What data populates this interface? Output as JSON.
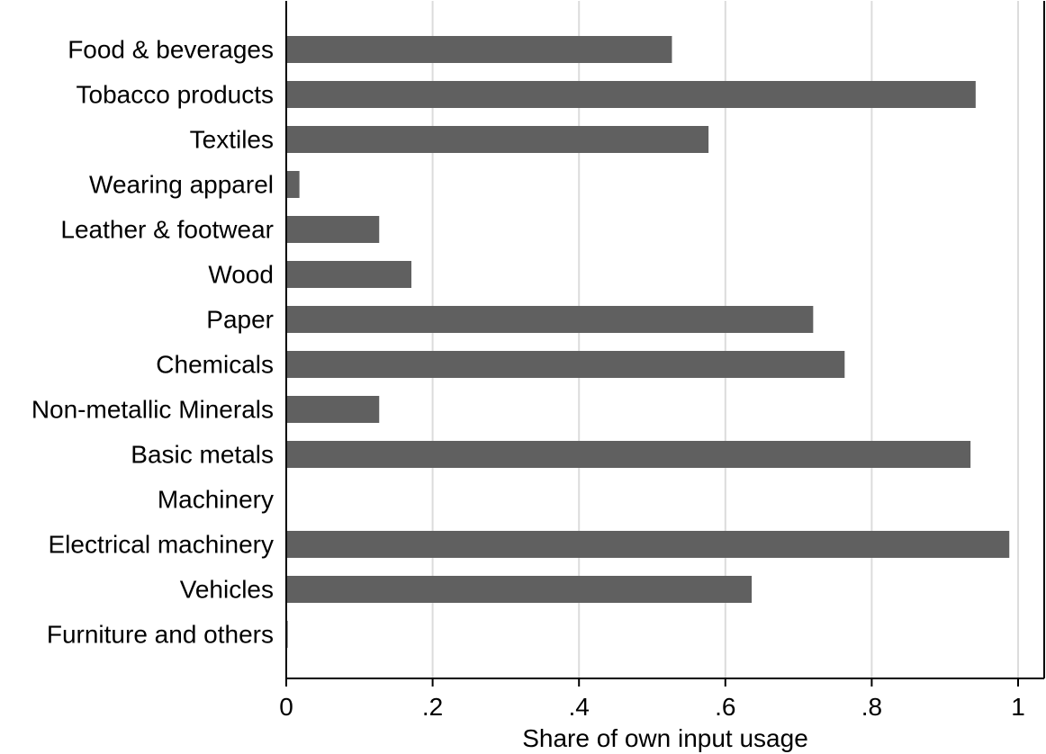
{
  "chart_data": {
    "type": "bar",
    "orientation": "horizontal",
    "categories": [
      "Food & beverages",
      "Tobacco products",
      "Textiles",
      "Wearing apparel",
      "Leather & footwear",
      "Wood",
      "Paper",
      "Chemicals",
      "Non-metallic Minerals",
      "Basic metals",
      "Machinery",
      "Electrical machinery",
      "Vehicles",
      "Furniture and others"
    ],
    "values": [
      0.527,
      0.942,
      0.577,
      0.018,
      0.127,
      0.171,
      0.72,
      0.763,
      0.127,
      0.935,
      0,
      0.988,
      0.636,
      0.002
    ],
    "title": "",
    "xlabel": "Share of own input usage",
    "ylabel": "",
    "xlim": [
      0,
      1
    ],
    "xticks": [
      {
        "value": 0,
        "label": "0"
      },
      {
        "value": 0.2,
        "label": ".2"
      },
      {
        "value": 0.4,
        "label": ".4"
      },
      {
        "value": 0.6,
        "label": ".6"
      },
      {
        "value": 0.8,
        "label": ".8"
      },
      {
        "value": 1,
        "label": "1"
      }
    ],
    "grid": "vertical",
    "legend": "none",
    "colors": {
      "bar": "#606060",
      "grid": "#dcdcdc",
      "axis": "#000000",
      "background": "#ffffff"
    }
  }
}
